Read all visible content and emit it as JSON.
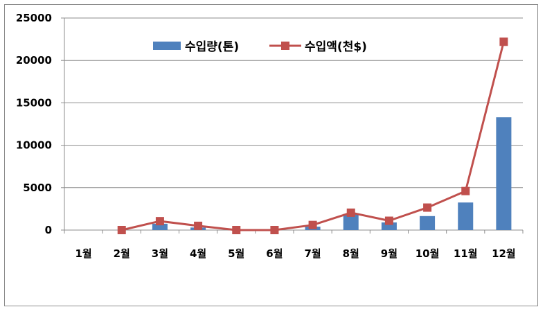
{
  "chart_data": {
    "type": "bar",
    "categories": [
      "1월",
      "2월",
      "3월",
      "4월",
      "5월",
      "6월",
      "7월",
      "8월",
      "9월",
      "10월",
      "11월",
      "12월"
    ],
    "series": [
      {
        "name": "수입량(톤)",
        "type": "bar",
        "color": "#4f81bd",
        "values": [
          0,
          0,
          750,
          300,
          0,
          0,
          400,
          1900,
          900,
          1650,
          3250,
          13300
        ]
      },
      {
        "name": "수입액(천$)",
        "type": "line",
        "color": "#c0504d",
        "marker": "square",
        "values": [
          null,
          0,
          1050,
          500,
          0,
          0,
          600,
          2050,
          1100,
          2650,
          4600,
          22200
        ]
      }
    ],
    "yticks": [
      "0",
      "5000",
      "10000",
      "15000",
      "20000",
      "25000"
    ],
    "ylim": [
      0,
      25000
    ],
    "grid": true,
    "legend_position": "top-center"
  }
}
